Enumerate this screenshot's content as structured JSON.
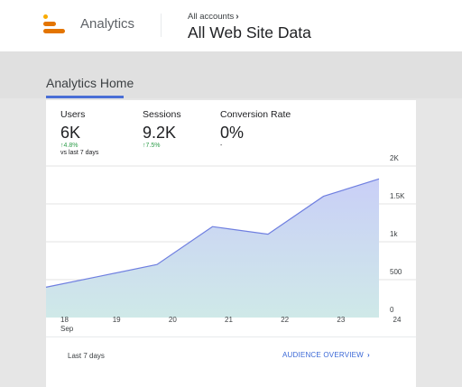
{
  "header": {
    "app_name": "Analytics",
    "accounts_label": "All accounts",
    "accounts_chevron": "›",
    "property_name": "All Web Site Data",
    "logo_colors": [
      "#f9ab00",
      "#e37400",
      "#e37400"
    ]
  },
  "page": {
    "title": "Analytics Home",
    "accent_color": "#4a6fd6"
  },
  "metrics": [
    {
      "label": "Users",
      "value": "6K",
      "change": "↑4.8%",
      "comparison": "vs last 7 days"
    },
    {
      "label": "Sessions",
      "value": "9.2K",
      "change": "↑7.5%",
      "comparison": ""
    },
    {
      "label": "Conversion Rate",
      "value": "0%",
      "change": "-",
      "comparison": ""
    }
  ],
  "chart_data": {
    "type": "area",
    "x": [
      "18",
      "19",
      "20",
      "21",
      "22",
      "23",
      "24"
    ],
    "x_sublabel": "Sep",
    "series": [
      {
        "values": [
          400,
          550,
          700,
          1200,
          1100,
          1600,
          1830
        ]
      }
    ],
    "ylim": [
      0,
      2000
    ],
    "yticks": [
      "0",
      "500",
      "1k",
      "1.5K",
      "2K"
    ],
    "ytick_values": [
      0,
      500,
      1000,
      1500,
      2000
    ],
    "fill_color_top": "#c9cff7",
    "fill_color_bottom": "#cfe9e8",
    "line_color": "#6f7fe0",
    "grid": true
  },
  "footer": {
    "date_range": "Last 7 days",
    "overview_link": "AUDIENCE OVERVIEW",
    "overview_chevron": "›"
  }
}
